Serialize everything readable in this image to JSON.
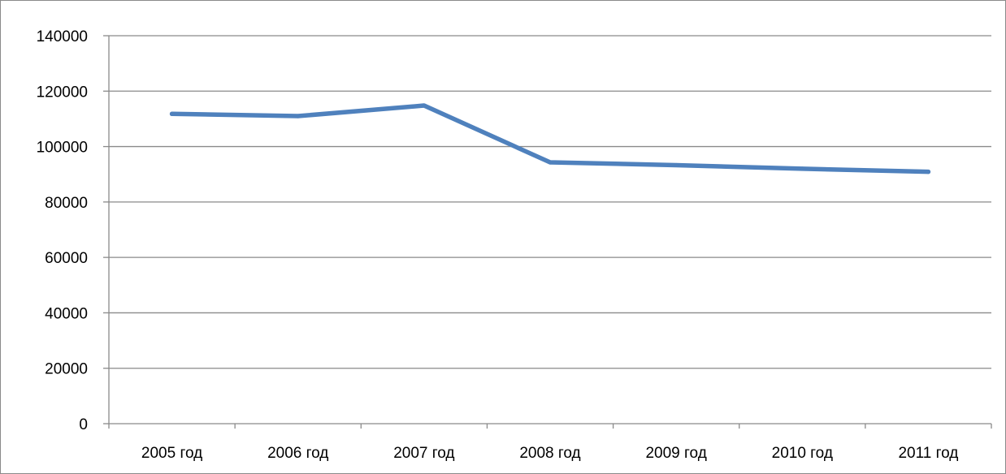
{
  "chart_data": {
    "type": "line",
    "title": "",
    "xlabel": "",
    "ylabel": "",
    "categories": [
      "2005 год",
      "2006 год",
      "2007 год",
      "2008 год",
      "2009 год",
      "2010 год",
      "2011 год"
    ],
    "series": [
      {
        "values": [
          111800,
          111000,
          114800,
          94300,
          93300,
          92000,
          90900
        ],
        "color": "#4f81bd"
      }
    ],
    "ylim": [
      0,
      140000
    ],
    "yticks": [
      0,
      20000,
      40000,
      60000,
      80000,
      100000,
      120000,
      140000
    ],
    "grid": true,
    "legend": "none"
  }
}
